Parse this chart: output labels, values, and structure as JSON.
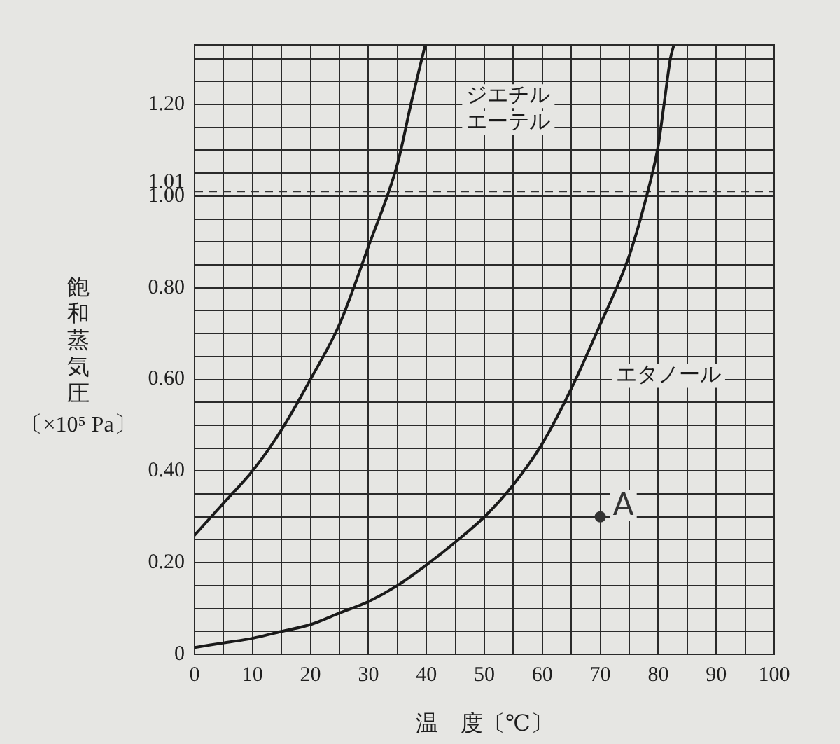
{
  "chart_data": {
    "type": "line",
    "xlabel": "温　度〔℃〕",
    "ylabel": "飽和蒸気圧〔×10⁵ Pa〕",
    "series": [
      {
        "name": "ジエチルエーテル",
        "color": "#1a1a1a",
        "x": [
          0,
          5,
          10,
          15,
          20,
          25,
          30,
          35,
          37.5,
          39.8
        ],
        "values": [
          0.26,
          0.33,
          0.4,
          0.49,
          0.6,
          0.72,
          0.89,
          1.07,
          1.21,
          1.33
        ]
      },
      {
        "name": "エタノール",
        "color": "#1a1a1a",
        "x": [
          0,
          5,
          10,
          15,
          20,
          25,
          30,
          35,
          40,
          45,
          50,
          55,
          60,
          65,
          70,
          75,
          78.2,
          80,
          81,
          82.1,
          82.7
        ],
        "values": [
          0.015,
          0.025,
          0.035,
          0.05,
          0.065,
          0.09,
          0.115,
          0.15,
          0.195,
          0.245,
          0.3,
          0.37,
          0.46,
          0.58,
          0.72,
          0.87,
          1.01,
          1.11,
          1.2,
          1.3,
          1.33
        ]
      },
      {
        "type": "scatter",
        "marker": "circle",
        "color": "#333333",
        "x": [
          70
        ],
        "values": [
          0.3
        ]
      }
    ],
    "xlim": [
      0,
      100
    ],
    "ylim": [
      0,
      1.33
    ],
    "xticks": [
      0,
      {
        "value": 5,
        "label": null
      },
      10,
      {
        "value": 15,
        "label": null
      },
      20,
      {
        "value": 25,
        "label": null
      },
      30,
      {
        "value": 35,
        "label": null
      },
      40,
      {
        "value": 45,
        "label": null
      },
      50,
      {
        "value": 55,
        "label": null
      },
      60,
      {
        "value": 65,
        "label": null
      },
      70,
      {
        "value": 75,
        "label": null
      },
      80,
      {
        "value": 85,
        "label": null
      },
      90,
      {
        "value": 95,
        "label": null
      },
      100
    ],
    "yticks": [
      0,
      {
        "value": 0.05,
        "label": null
      },
      {
        "value": 0.1,
        "label": null
      },
      {
        "value": 0.15,
        "label": null
      },
      {
        "value": 0.2,
        "label": "0.20"
      },
      {
        "value": 0.25,
        "label": null
      },
      {
        "value": 0.3,
        "label": null
      },
      {
        "value": 0.35,
        "label": null
      },
      {
        "value": 0.4,
        "label": "0.40"
      },
      {
        "value": 0.45,
        "label": null
      },
      {
        "value": 0.5,
        "label": null
      },
      {
        "value": 0.55,
        "label": null
      },
      {
        "value": 0.6,
        "label": "0.60"
      },
      {
        "value": 0.65,
        "label": null
      },
      {
        "value": 0.7,
        "label": null
      },
      {
        "value": 0.75,
        "label": null
      },
      {
        "value": 0.8,
        "label": "0.80"
      },
      {
        "value": 0.85,
        "label": null
      },
      {
        "value": 0.9,
        "label": null
      },
      {
        "value": 0.95,
        "label": null
      },
      {
        "value": 1.0,
        "label": "1.00"
      },
      {
        "value": 1.05,
        "label": null
      },
      {
        "value": 1.1,
        "label": null
      },
      {
        "value": 1.15,
        "label": null
      },
      {
        "value": 1.2,
        "label": "1.20"
      },
      {
        "value": 1.25,
        "label": null
      },
      {
        "value": 1.3,
        "label": null
      }
    ],
    "grid": true,
    "marker": "none",
    "line_style": "solid",
    "ref_lines": [
      {
        "axis": "y",
        "value": 1.01,
        "label": "1.01",
        "line_style": "dashed",
        "color": "#333333"
      }
    ],
    "annotations": [
      {
        "text": "A",
        "x": 70,
        "y": 0.3
      }
    ]
  }
}
